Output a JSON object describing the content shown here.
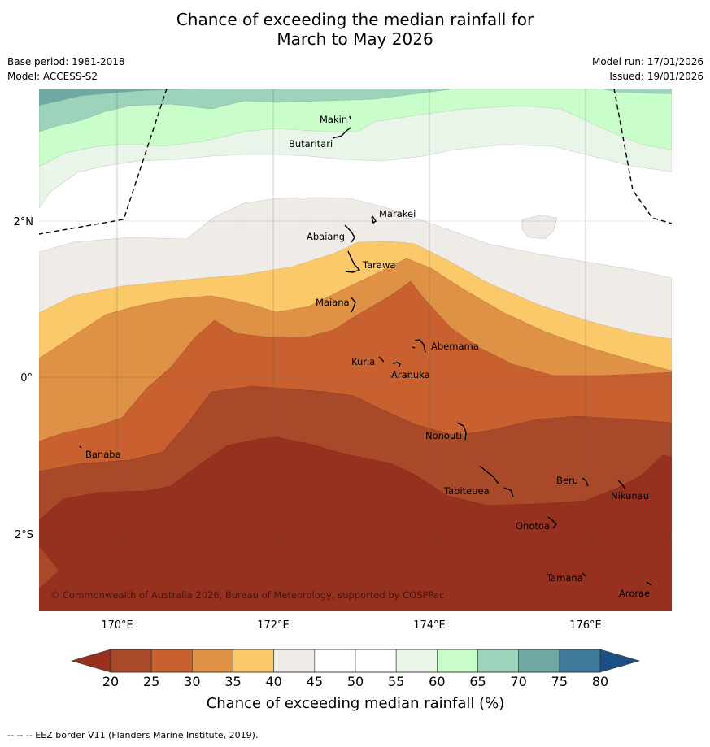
{
  "header": {
    "title_line1": "Chance of exceeding the median rainfall for",
    "title_line2": "March to May 2026",
    "base_period": "Base period: 1981-2018",
    "model": "Model: ACCESS-S2",
    "model_run": "Model run: 17/01/2026",
    "issued": "Issued: 19/01/2026"
  },
  "map": {
    "lat_labels": [
      "2°N",
      "0°",
      "2°S"
    ],
    "lon_labels": [
      "170°E",
      "172°E",
      "174°E",
      "176°E"
    ],
    "copyright": "© Commonwealth of Australia 2026, Bureau of Meteorology, supported by COSPPac",
    "places": [
      "Makin",
      "Butaritari",
      "Marakei",
      "Abaiang",
      "Tarawa",
      "Maiana",
      "Abemama",
      "Kuria",
      "Aranuka",
      "Nonouti",
      "Banaba",
      "Tabiteuea",
      "Beru",
      "Nikunau",
      "Onotoa",
      "Tamana",
      "Arorae"
    ]
  },
  "legend": {
    "title": "Chance of exceeding median rainfall (%)",
    "ticks": [
      "20",
      "25",
      "30",
      "35",
      "40",
      "45",
      "50",
      "55",
      "60",
      "65",
      "70",
      "75",
      "80"
    ],
    "colors": [
      "#a84a2a",
      "#c8612f",
      "#df9245",
      "#fcc96a",
      "#efebe6",
      "#ffffff",
      "#ffffff",
      "#e9f5e8",
      "#c9fdca",
      "#9dd3bb",
      "#70a8a4",
      "#3f7a9b"
    ],
    "under_color": "#96311f",
    "over_color": "#1e4e86"
  },
  "footer": {
    "eez_note": "--  --  -- EEZ border V11 (Flanders Marine Institute, 2019)."
  }
}
